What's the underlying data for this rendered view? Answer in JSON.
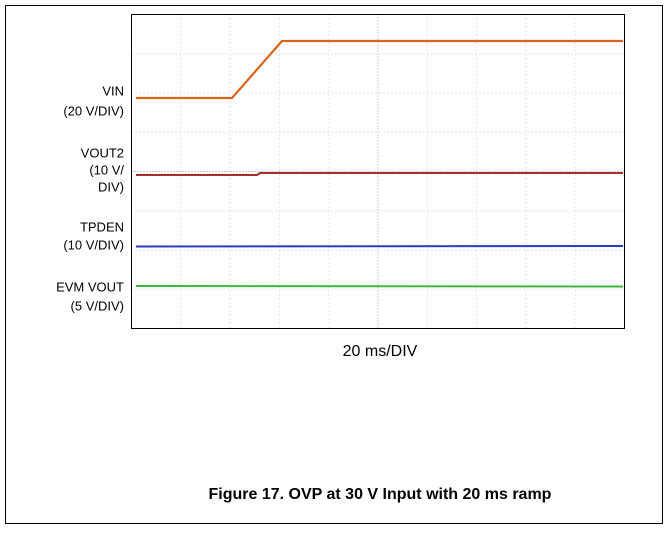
{
  "channel_labels": [
    [
      "VIN",
      "(20 V/DIV)"
    ],
    [
      "VOUT2",
      "(10 V/",
      "DIV)"
    ],
    [
      "TPDEN",
      "(10 V/DIV)"
    ],
    [
      "EVM VOUT",
      "(5 V/DIV)"
    ]
  ],
  "x_label": "20 ms/DIV",
  "caption": "Figure 17. OVP at 30 V Input with 20 ms ramp"
}
